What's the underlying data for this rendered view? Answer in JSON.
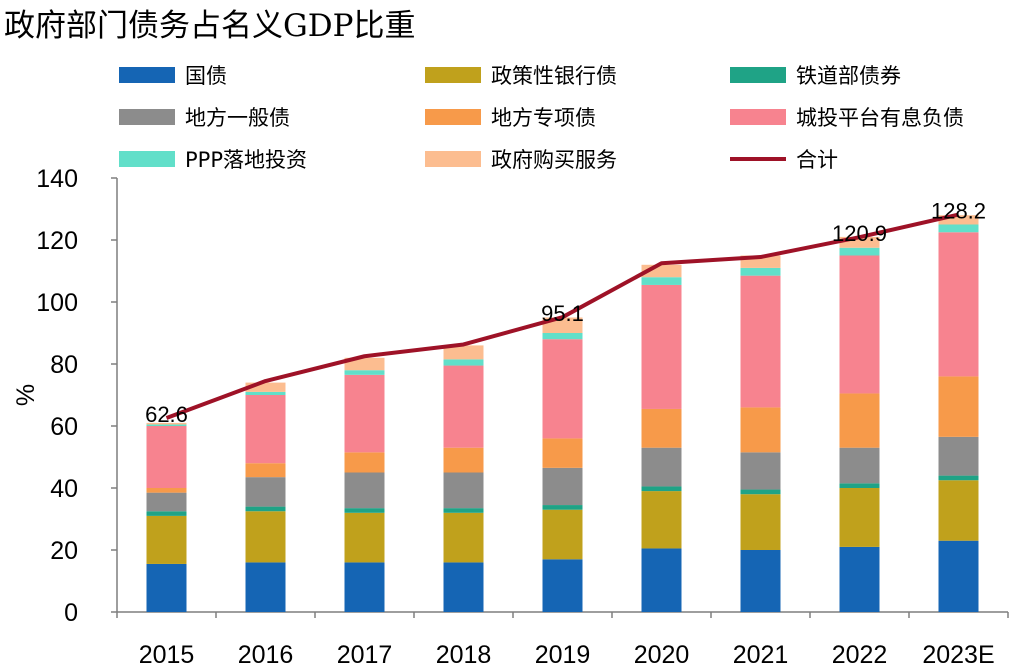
{
  "chart_data": {
    "type": "bar",
    "stacked": true,
    "title": "政府部门债务占名义GDP比重",
    "ylabel": "%",
    "xlabel": "",
    "ylim": [
      0,
      140
    ],
    "yticks": [
      0,
      20,
      40,
      60,
      80,
      100,
      120,
      140
    ],
    "grid": false,
    "legend_position": "top",
    "categories": [
      "2015",
      "2016",
      "2017",
      "2018",
      "2019",
      "2020",
      "2021",
      "2022",
      "2023E"
    ],
    "series": [
      {
        "name": "国债",
        "color": "#1565b4",
        "values": [
          15.5,
          16.0,
          16.0,
          16.0,
          17.0,
          20.5,
          20.0,
          21.0,
          23.0
        ]
      },
      {
        "name": "政策性银行债",
        "color": "#c0a11c",
        "values": [
          15.5,
          16.5,
          16.0,
          16.0,
          16.0,
          18.5,
          18.0,
          19.0,
          19.5
        ]
      },
      {
        "name": "铁道部债券",
        "color": "#1fa386",
        "values": [
          1.5,
          1.5,
          1.5,
          1.5,
          1.5,
          1.5,
          1.5,
          1.5,
          1.5
        ]
      },
      {
        "name": "地方一般债",
        "color": "#8c8c8c",
        "values": [
          6.0,
          9.5,
          11.5,
          11.5,
          12.0,
          12.5,
          12.0,
          11.5,
          12.5
        ]
      },
      {
        "name": "地方专项债",
        "color": "#f79a4a",
        "values": [
          1.5,
          4.5,
          6.5,
          8.0,
          9.5,
          12.5,
          14.5,
          17.5,
          19.5
        ]
      },
      {
        "name": "城投平台有息负债",
        "color": "#f7838f",
        "values": [
          20.0,
          22.0,
          25.0,
          26.5,
          32.0,
          40.0,
          42.5,
          44.5,
          46.5
        ]
      },
      {
        "name": "PPP落地投资",
        "color": "#61dfc9",
        "values": [
          0.5,
          1.0,
          1.5,
          2.0,
          2.0,
          2.5,
          2.5,
          2.5,
          2.5
        ]
      },
      {
        "name": "政府购买服务",
        "color": "#fcbd90",
        "values": [
          0.5,
          3.0,
          4.0,
          4.5,
          5.0,
          4.0,
          4.0,
          3.5,
          3.0
        ]
      }
    ],
    "line": {
      "name": "合计",
      "color": "#9e1227",
      "values": [
        62.6,
        74.5,
        82.5,
        86.3,
        95.1,
        112.5,
        114.5,
        120.9,
        128.2
      ]
    },
    "data_labels": [
      {
        "index": 0,
        "text": "62.6"
      },
      {
        "index": 4,
        "text": "95.1"
      },
      {
        "index": 7,
        "text": "120.9"
      },
      {
        "index": 8,
        "text": "128.2"
      }
    ]
  }
}
